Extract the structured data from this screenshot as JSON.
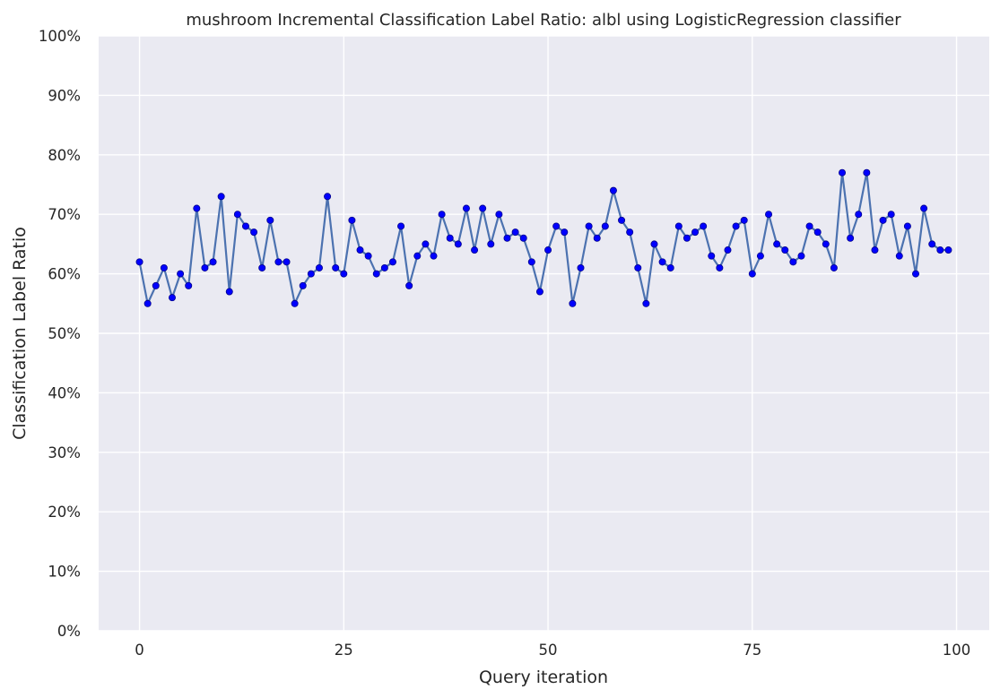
{
  "chart_data": {
    "type": "line",
    "title": "mushroom Incremental Classification Label Ratio: albl using LogisticRegression classifier",
    "xlabel": "Query iteration",
    "ylabel": "Classification Label Ratio",
    "xlim": [
      -5,
      104
    ],
    "ylim": [
      0,
      100
    ],
    "x_ticks": [
      0,
      25,
      50,
      75,
      100
    ],
    "x_tick_labels": [
      "0",
      "25",
      "50",
      "75",
      "100"
    ],
    "y_ticks": [
      0,
      10,
      20,
      30,
      40,
      50,
      60,
      70,
      80,
      90,
      100
    ],
    "y_tick_labels": [
      "0%",
      "10%",
      "20%",
      "30%",
      "40%",
      "50%",
      "60%",
      "70%",
      "80%",
      "90%",
      "100%"
    ],
    "grid": true,
    "legend": "none",
    "colors": {
      "plot_background": "#EAEAF2",
      "grid": "#FFFFFF",
      "line": "#4C72B0",
      "marker": "#0000FF",
      "marker_edge": "#00008B",
      "text": "#262626"
    },
    "series": [
      {
        "x": [
          0,
          1,
          2,
          3,
          4,
          5,
          6,
          7,
          8,
          9,
          10,
          11,
          12,
          13,
          14,
          15,
          16,
          17,
          18,
          19,
          20,
          21,
          22,
          23,
          24,
          25,
          26,
          27,
          28,
          29,
          30,
          31,
          32,
          33,
          34,
          35,
          36,
          37,
          38,
          39,
          40,
          41,
          42,
          43,
          44,
          45,
          46,
          47,
          48,
          49,
          50,
          51,
          52,
          53,
          54,
          55,
          56,
          57,
          58,
          59,
          60,
          61,
          62,
          63,
          64,
          65,
          66,
          67,
          68,
          69,
          70,
          71,
          72,
          73,
          74,
          75,
          76,
          77,
          78,
          79,
          80,
          81,
          82,
          83,
          84,
          85,
          86,
          87,
          88,
          89,
          90,
          91,
          92,
          93,
          94,
          95,
          96,
          97,
          98,
          99
        ],
        "y": [
          62,
          55,
          58,
          61,
          56,
          60,
          58,
          71,
          61,
          62,
          73,
          57,
          70,
          68,
          67,
          61,
          69,
          62,
          62,
          55,
          58,
          60,
          61,
          73,
          61,
          60,
          69,
          64,
          63,
          60,
          61,
          62,
          68,
          58,
          63,
          65,
          63,
          70,
          66,
          65,
          71,
          64,
          71,
          65,
          70,
          66,
          67,
          66,
          62,
          57,
          64,
          68,
          67,
          55,
          61,
          68,
          66,
          68,
          74,
          69,
          67,
          61,
          55,
          65,
          62,
          61,
          68,
          66,
          67,
          68,
          63,
          61,
          64,
          68,
          69,
          60,
          63,
          70,
          65,
          64,
          62,
          63,
          68,
          67,
          65,
          61,
          77,
          66,
          70,
          77,
          64,
          69,
          70,
          63,
          68,
          60,
          71,
          65,
          64,
          64
        ]
      }
    ]
  }
}
